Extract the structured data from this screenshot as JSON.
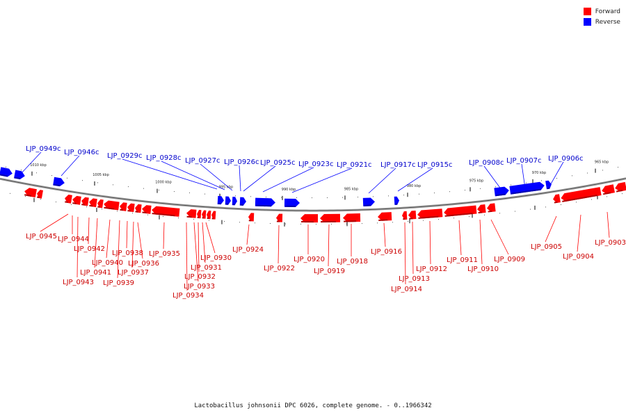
{
  "legend": {
    "forward_label": "Forward",
    "reverse_label": "Reverse",
    "forward_color": "#ff0000",
    "reverse_color": "#0000ff"
  },
  "caption": "Lactobacillus johnsonii DPC 6026, complete genome. - 0..1966342",
  "ticks": [
    "1010 kbp",
    "1005 kbp",
    "1000 kbp",
    "995 kbp",
    "990 kbp",
    "985 kbp",
    "980 kbp",
    "975 kbp",
    "970 kbp",
    "965 kbp"
  ],
  "reverse_genes": [
    "LJP_0949c",
    "LJP_0946c",
    "LJP_0929c",
    "LJP_0928c",
    "LJP_0927c",
    "LJP_0926c",
    "LJP_0925c",
    "LJP_0923c",
    "LJP_0921c",
    "LJP_0917c",
    "LJP_0915c",
    "LJP_0908c",
    "LJP_0907c",
    "LJP_0906c"
  ],
  "forward_genes": [
    "LJP_0945",
    "LJP_0944",
    "LJP_0943",
    "LJP_0942",
    "LJP_0941",
    "LJP_0940",
    "LJP_0939",
    "LJP_0938",
    "LJP_0937",
    "LJP_0936",
    "LJP_0935",
    "LJP_0934",
    "LJP_0933",
    "LJP_0932",
    "LJP_0931",
    "LJP_0930",
    "LJP_0924",
    "LJP_0922",
    "LJP_0920",
    "LJP_0919",
    "LJP_0918",
    "LJP_0916",
    "LJP_0914",
    "LJP_0913",
    "LJP_0912",
    "LJP_0911",
    "LJP_0910",
    "LJP_0909",
    "LJP_0905",
    "LJP_0904",
    "LJP_0903"
  ]
}
